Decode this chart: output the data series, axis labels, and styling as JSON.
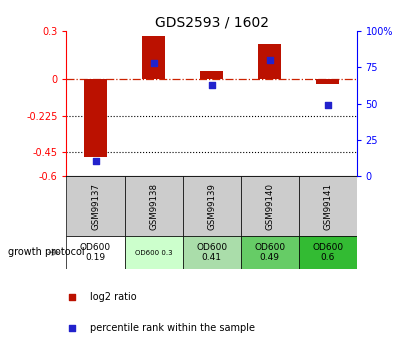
{
  "title": "GDS2593 / 1602",
  "samples": [
    "GSM99137",
    "GSM99138",
    "GSM99139",
    "GSM99140",
    "GSM99141"
  ],
  "log2_ratio": [
    -0.48,
    0.27,
    0.05,
    0.22,
    -0.03
  ],
  "percentile_rank": [
    10,
    78,
    63,
    80,
    49
  ],
  "ylim_left": [
    -0.6,
    0.3
  ],
  "ylim_right": [
    0,
    100
  ],
  "left_ticks": [
    0.3,
    0.0,
    -0.225,
    -0.45,
    -0.6
  ],
  "left_tick_labels": [
    "0.3",
    "0",
    "-0.225",
    "-0.45",
    "-0.6"
  ],
  "right_ticks": [
    100,
    75,
    50,
    25,
    0
  ],
  "right_tick_labels": [
    "100%",
    "75",
    "50",
    "25",
    "0"
  ],
  "hlines": [
    -0.225,
    -0.45
  ],
  "bar_color": "#bb1100",
  "dot_color": "#2222cc",
  "zero_line_color": "#cc2200",
  "growth_protocol_labels": [
    "OD600\n0.19",
    "OD600 0.3",
    "OD600\n0.41",
    "OD600\n0.49",
    "OD600\n0.6"
  ],
  "growth_bg_colors": [
    "#ffffff",
    "#ccffcc",
    "#aaddaa",
    "#66cc66",
    "#33bb33"
  ],
  "title_fontsize": 10,
  "tick_fontsize": 7,
  "bar_width": 0.4
}
